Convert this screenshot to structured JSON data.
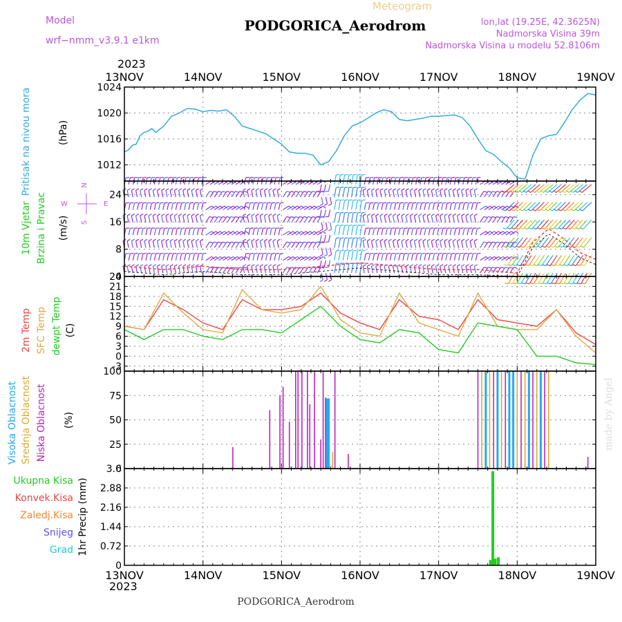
{
  "header": {
    "meteogram_label": "Meteogram",
    "title": "PODGORICA_Aerodrom",
    "model_label": "Model",
    "model_name": "wrf−nmm_v3.9.1  e1km",
    "lonlat": "lon,lat (19.25E, 42.3625N)",
    "elevation": "Nadmorska Visina 39m",
    "model_elevation": "Nadmorska Visina u modelu 52.8106m",
    "year_top": "2023",
    "year_bottom": "2023",
    "footer": "PODGORICA_Aerodrom",
    "watermark": "made by Angel"
  },
  "colors": {
    "pressure": "#33aadd",
    "temp2m": "#ee4444",
    "sfc": "#ddaa44",
    "dewpt": "#22cc22",
    "high_cloud": "#22aaee",
    "mid_cloud": "#ddaa33",
    "low_cloud": "#bb22bb",
    "total_precip": "#22cc22",
    "model": "#bb55dd",
    "meta_title": "#eecc88"
  },
  "chart_data": [
    {
      "type": "line",
      "id": "pressure",
      "axis_labels": [
        "Pritisak na nivou mora",
        "(hPa)"
      ],
      "x_ticks": [
        "13NOV",
        "14NOV",
        "15NOV",
        "16NOV",
        "17NOV",
        "18NOV",
        "19NOV"
      ],
      "xlim": [
        0,
        6
      ],
      "ylim": [
        1009.5,
        1024
      ],
      "y_ticks": [
        1012,
        1016,
        1020,
        1024
      ],
      "grid": true,
      "x": [
        0,
        0.05,
        0.1,
        0.15,
        0.2,
        0.25,
        0.3,
        0.35,
        0.4,
        0.5,
        0.6,
        0.7,
        0.8,
        0.9,
        1.0,
        1.1,
        1.2,
        1.3,
        1.4,
        1.5,
        1.6,
        1.7,
        1.8,
        1.9,
        2.0,
        2.1,
        2.2,
        2.3,
        2.4,
        2.5,
        2.6,
        2.7,
        2.8,
        2.9,
        3.0,
        3.1,
        3.2,
        3.3,
        3.4,
        3.5,
        3.6,
        3.7,
        3.8,
        3.9,
        4.0,
        4.1,
        4.2,
        4.3,
        4.4,
        4.5,
        4.6,
        4.7,
        4.8,
        4.9,
        5.0,
        5.1,
        5.2,
        5.3,
        5.4,
        5.5,
        5.6,
        5.7,
        5.8,
        5.9,
        6.0
      ],
      "y": [
        1014.0,
        1014.3,
        1015.0,
        1015.2,
        1016.5,
        1017.0,
        1017.2,
        1017.6,
        1017.0,
        1018.0,
        1019.5,
        1020.0,
        1020.7,
        1020.6,
        1020.2,
        1020.4,
        1020.3,
        1020.5,
        1019.5,
        1018.0,
        1017.6,
        1017.2,
        1016.8,
        1016.0,
        1015.2,
        1014.0,
        1013.8,
        1013.8,
        1013.5,
        1012.0,
        1012.5,
        1014.2,
        1016.5,
        1018.0,
        1018.5,
        1019.2,
        1020.0,
        1020.5,
        1020.2,
        1019.0,
        1018.8,
        1019.0,
        1019.2,
        1019.5,
        1019.5,
        1019.6,
        1019.7,
        1019.3,
        1018.0,
        1016.0,
        1014.2,
        1013.6,
        1012.5,
        1011.5,
        1010.0,
        1009.8,
        1013.5,
        1016.0,
        1016.5,
        1016.7,
        1018.5,
        1020.5,
        1022.0,
        1023.0,
        1022.8
      ]
    },
    {
      "type": "barbs",
      "id": "wind",
      "axis_labels": [
        "10m Vjetar",
        "Brzina i Pravac",
        "(m/s)"
      ],
      "compass": [
        "N",
        "W",
        "E",
        "S"
      ],
      "ylim": [
        0,
        28
      ],
      "y_ticks": [
        0,
        8,
        16,
        24
      ],
      "grid": true,
      "x": [
        0,
        0.5,
        1.0,
        1.5,
        2.0,
        2.5,
        3.0,
        3.5,
        4.0,
        4.5,
        5.0,
        5.2,
        5.4,
        5.6,
        5.8,
        6.0
      ],
      "speed": [
        3,
        2,
        3,
        2,
        2,
        3,
        4,
        3,
        2,
        2,
        1,
        10,
        14,
        11,
        7,
        5
      ],
      "direction": [
        "N",
        "N",
        "NE",
        "N",
        "NE",
        "S",
        "N",
        "N",
        "N",
        "NE",
        "N",
        "SW",
        "S",
        "S",
        "S",
        "SW"
      ]
    },
    {
      "type": "line",
      "id": "temperature",
      "axis_labels": [
        "2m Temp",
        "SFC Temp",
        "dewpt Temp",
        "(C)"
      ],
      "ylim": [
        -4.5,
        24
      ],
      "y_ticks": [
        -3,
        0,
        3,
        6,
        9,
        12,
        15,
        18,
        21,
        24
      ],
      "grid": true,
      "x": [
        0,
        0.25,
        0.5,
        0.75,
        1.0,
        1.25,
        1.5,
        1.75,
        2.0,
        2.25,
        2.5,
        2.75,
        3.0,
        3.25,
        3.5,
        3.75,
        4.0,
        4.25,
        4.5,
        4.75,
        5.0,
        5.25,
        5.5,
        5.75,
        6.0
      ],
      "series": [
        {
          "name": "2m Temp",
          "values": [
            9,
            8,
            17,
            14,
            10,
            8,
            17,
            14,
            14,
            15,
            19,
            13,
            10,
            8,
            17,
            12,
            11,
            8,
            17,
            11,
            10,
            9,
            14,
            7,
            3.5
          ]
        },
        {
          "name": "SFC Temp",
          "values": [
            9,
            8,
            19,
            13,
            8,
            7,
            20,
            14,
            13,
            14,
            21,
            11,
            7,
            6,
            19,
            10,
            8,
            6,
            19,
            9,
            8,
            8,
            14,
            6,
            1
          ]
        },
        {
          "name": "dewpt Temp",
          "values": [
            8,
            5,
            8,
            8,
            6,
            5,
            8,
            8,
            7,
            11,
            15,
            9,
            5,
            4,
            8,
            7,
            2,
            1,
            10,
            9,
            8,
            0,
            0,
            -2,
            -2.5
          ]
        }
      ]
    },
    {
      "type": "bar",
      "id": "clouds",
      "axis_labels": [
        "Visoka Oblacnost",
        "Srednja Oblacnost",
        "Niska Oblacnost",
        "(%)"
      ],
      "ylim": [
        0,
        100
      ],
      "y_ticks": [
        0,
        25,
        50,
        75,
        100
      ],
      "grid": true,
      "series": [
        {
          "name": "Visoka Oblacnost",
          "points": [
            [
              2.58,
              72
            ],
            [
              2.6,
              72
            ],
            [
              4.6,
              100
            ],
            [
              4.75,
              100
            ],
            [
              4.9,
              100
            ],
            [
              4.95,
              100
            ],
            [
              5.15,
              100
            ],
            [
              5.3,
              100
            ]
          ]
        },
        {
          "name": "Srednja Oblacnost",
          "points": [
            [
              2.65,
              17
            ],
            [
              4.55,
              100
            ],
            [
              4.65,
              100
            ],
            [
              4.8,
              100
            ],
            [
              5.0,
              100
            ],
            [
              5.1,
              100
            ],
            [
              5.25,
              100
            ],
            [
              5.4,
              100
            ]
          ]
        },
        {
          "name": "Niska Oblacnost",
          "points": [
            [
              1.38,
              22
            ],
            [
              1.85,
              60
            ],
            [
              1.98,
              75
            ],
            [
              2.02,
              84
            ],
            [
              2.1,
              48
            ],
            [
              2.18,
              100
            ],
            [
              2.21,
              100
            ],
            [
              2.26,
              100
            ],
            [
              2.33,
              100
            ],
            [
              2.36,
              66
            ],
            [
              2.42,
              100
            ],
            [
              2.5,
              30
            ],
            [
              2.53,
              100
            ],
            [
              2.56,
              73
            ],
            [
              2.68,
              100
            ],
            [
              2.85,
              15
            ],
            [
              4.5,
              100
            ],
            [
              4.7,
              100
            ],
            [
              4.85,
              100
            ],
            [
              5.05,
              100
            ],
            [
              5.2,
              100
            ],
            [
              5.35,
              100
            ],
            [
              5.9,
              12
            ]
          ]
        }
      ]
    },
    {
      "type": "bar",
      "id": "precip",
      "axis_labels": [
        "1hr Precip (mm)"
      ],
      "legend": [
        "Ukupna Kisa",
        "Konvek.Kisa",
        "Zaledj.Kisa",
        "Snijeg",
        "Grad"
      ],
      "legend_colors": [
        "#22cc22",
        "#ee4444",
        "#ee8833",
        "#5555ee",
        "#22cccc"
      ],
      "ylim": [
        0,
        3.6
      ],
      "y_ticks": [
        0,
        0.72,
        1.44,
        2.16,
        2.88,
        3.6
      ],
      "grid": true,
      "series": [
        {
          "name": "Ukupna Kisa",
          "points": [
            [
              4.66,
              0.2
            ],
            [
              4.69,
              3.5
            ],
            [
              4.72,
              0.25
            ],
            [
              4.76,
              0.3
            ]
          ]
        }
      ]
    }
  ]
}
